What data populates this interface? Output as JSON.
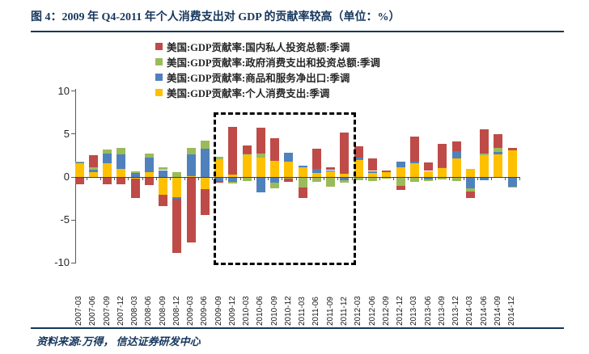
{
  "title": "图 4：2009 年 Q4-2011 年个人消费支出对 GDP 的贡献率较高（单位：%）",
  "footer": {
    "source_note": "资料来源:万得， 信达证券研发中心"
  },
  "legend": [
    {
      "label": "美国:GDP贡献率:国内私人投资总额:季调",
      "color": "#BE4B48"
    },
    {
      "label": "美国:GDP贡献率:政府消费支出和投资总额:季调",
      "color": "#9BBB59"
    },
    {
      "label": "美国:GDP贡献率:商品和服务净出口:季调",
      "color": "#4F81BD"
    },
    {
      "label": "美国:GDP贡献率:个人消费支出:季调",
      "color": "#FFC000"
    }
  ],
  "chart_data": {
    "type": "bar",
    "stacked": true,
    "title": "2009 年 Q4-2011 年个人消费支出对 GDP 的贡献率较高",
    "unit": "%",
    "ylim": [
      -10,
      10
    ],
    "yticks": [
      10,
      5,
      0,
      -5,
      -10
    ],
    "grid": false,
    "legend_position": "top",
    "highlight_box_range": [
      "2009-09",
      "2011-12"
    ],
    "categories": [
      "2007-03",
      "2007-06",
      "2007-09",
      "2007-12",
      "2008-03",
      "2008-06",
      "2008-09",
      "2008-12",
      "2009-03",
      "2009-06",
      "2009-09",
      "2009-12",
      "2010-03",
      "2010-06",
      "2010-09",
      "2010-12",
      "2011-03",
      "2011-06",
      "2011-09",
      "2011-12",
      "2012-03",
      "2012-06",
      "2012-09",
      "2012-12",
      "2013-03",
      "2013-06",
      "2013-09",
      "2013-12",
      "2014-03",
      "2014-06",
      "2014-09",
      "2014-12"
    ],
    "series": [
      {
        "name": "美国:GDP贡献率:个人消费支出:季调",
        "color": "#FFC000",
        "values": [
          1.6,
          0.6,
          1.6,
          0.95,
          -0.2,
          0.6,
          -2.1,
          -2.35,
          0.1,
          -1.4,
          2.1,
          0.3,
          2.65,
          2.3,
          1.9,
          1.75,
          1.15,
          0.5,
          0.7,
          0.4,
          1.95,
          0.5,
          0.55,
          1.15,
          1.6,
          0.7,
          1.1,
          2.2,
          0.95,
          2.5,
          2.65,
          3.1
        ]
      },
      {
        "name": "美国:GDP贡献率:商品和服务净出口:季调",
        "color": "#4F81BD",
        "values": [
          0.1,
          0.25,
          1.1,
          1.7,
          0.45,
          1.65,
          0.8,
          -0.2,
          2.55,
          3.3,
          -0.5,
          -0.55,
          0.05,
          -1.8,
          -0.65,
          1.05,
          0.2,
          0.45,
          0.1,
          -0.4,
          0.3,
          0.2,
          -0.05,
          0.65,
          0.15,
          -0.3,
          0.05,
          0.8,
          -1.3,
          -0.4,
          0.25,
          -1.1
        ]
      },
      {
        "name": "美国:GDP贡献率:政府消费支出和投资总额:季调",
        "color": "#9BBB59",
        "values": [
          0.1,
          0.3,
          0.55,
          0.7,
          0.25,
          0.45,
          0.35,
          0.55,
          0.7,
          0.9,
          0.25,
          -0.2,
          -0.5,
          0.4,
          -0.7,
          -0.15,
          -1.2,
          -0.55,
          -1.15,
          -0.3,
          -0.35,
          -0.45,
          -0.1,
          -1.0,
          -0.55,
          -0.2,
          -0.25,
          -0.5,
          -0.4,
          0.2,
          0.45,
          -0.15
        ]
      },
      {
        "name": "美国:GDP贡献率:国内私人投资总额:季调",
        "color": "#BE4B48",
        "values": [
          -0.8,
          1.4,
          -0.85,
          -0.85,
          -2.3,
          -0.9,
          -1.3,
          -6.3,
          -7.6,
          -3.0,
          -0.2,
          5.55,
          1.0,
          3.0,
          2.6,
          -0.4,
          -1.2,
          2.35,
          0.35,
          4.75,
          1.35,
          1.5,
          0.25,
          -0.5,
          3.0,
          1.0,
          2.7,
          1.1,
          -0.75,
          2.85,
          1.6,
          0.3
        ]
      }
    ]
  }
}
